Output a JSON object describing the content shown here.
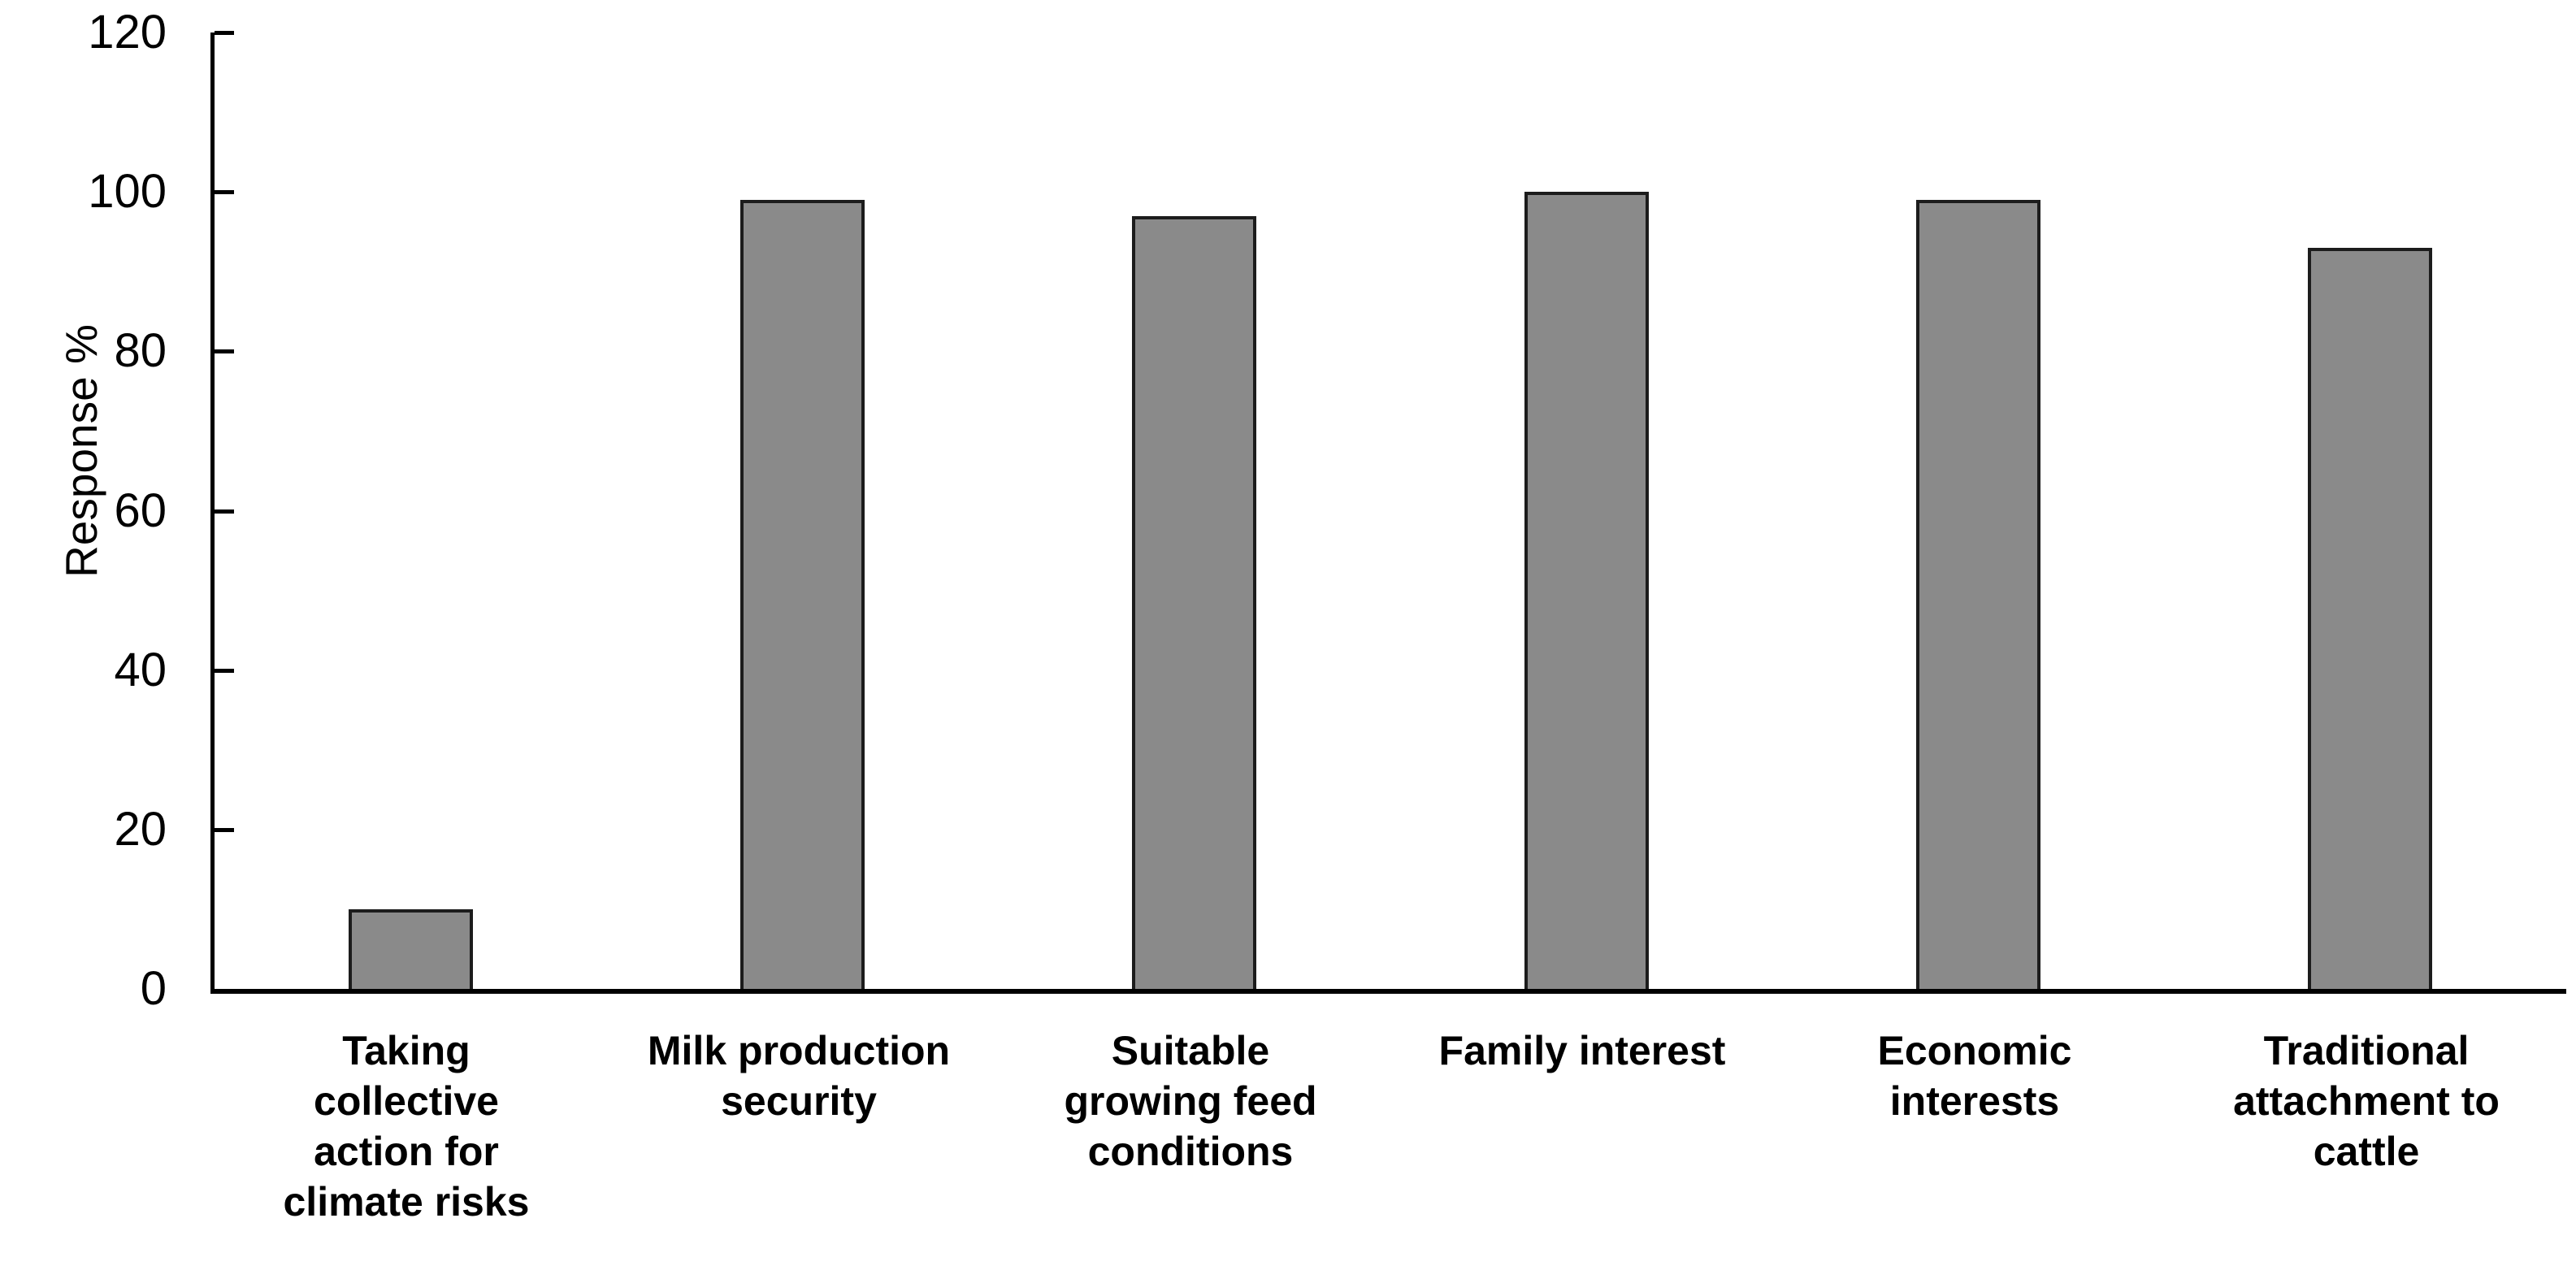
{
  "chart_data": {
    "type": "bar",
    "title": "",
    "xlabel": "",
    "ylabel": "Response %",
    "categories": [
      "Taking collective action for climate risks",
      "Milk production security",
      "Suitable growing feed conditions",
      "Family interest",
      "Economic interests",
      "Traditional attachment to cattle"
    ],
    "category_lines": [
      [
        "Taking",
        "collective",
        "action for",
        "climate risks"
      ],
      [
        "Milk production",
        "security"
      ],
      [
        "Suitable",
        "growing feed",
        "conditions"
      ],
      [
        "Family interest"
      ],
      [
        "Economic",
        "interests"
      ],
      [
        "Traditional",
        "attachment to",
        "cattle"
      ]
    ],
    "values": [
      10,
      99,
      97,
      100,
      99,
      93
    ],
    "yticks": [
      0,
      20,
      40,
      60,
      80,
      100,
      120
    ],
    "ylim": [
      0,
      120
    ],
    "grid": false,
    "legend": "none",
    "colors": {
      "bar_fill": "#8a8a8a",
      "bar_border": "#1c1c1c",
      "axis": "#000000",
      "text": "#000000",
      "background": "#ffffff"
    }
  }
}
